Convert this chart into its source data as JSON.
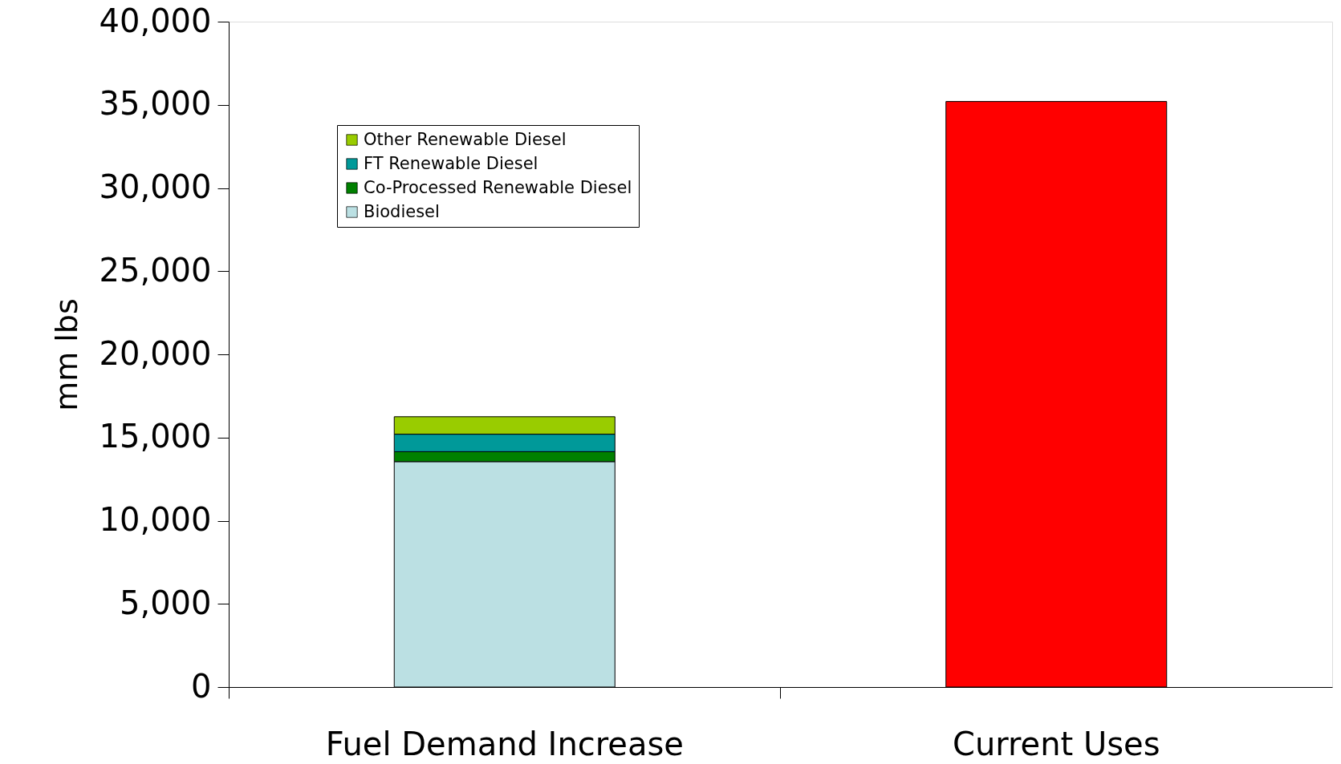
{
  "chart_data": {
    "type": "bar",
    "stacked": true,
    "ylabel": "mm lbs",
    "categories": [
      "Fuel Demand Increase",
      "Current Uses"
    ],
    "series": [
      {
        "name": "Biodiesel",
        "color": "#bbe0e3",
        "values": [
          13550,
          null
        ]
      },
      {
        "name": "Co-Processed Renewable Diesel",
        "color": "#008000",
        "values": [
          600,
          null
        ]
      },
      {
        "name": "FT Renewable Diesel",
        "color": "#009999",
        "values": [
          1050,
          null
        ]
      },
      {
        "name": "Other Renewable Diesel",
        "color": "#99cc00",
        "values": [
          1050,
          null
        ]
      },
      {
        "color": "#ff0000",
        "values": [
          null,
          35200
        ]
      }
    ],
    "ylim": [
      0,
      40000
    ],
    "yticks": [
      0,
      {
        "value": 5000,
        "label": "5,000"
      },
      {
        "value": 10000,
        "label": "10,000"
      },
      {
        "value": 15000,
        "label": "15,000"
      },
      {
        "value": 20000,
        "label": "20,000"
      },
      {
        "value": 25000,
        "label": "25,000"
      },
      {
        "value": 30000,
        "label": "30,000"
      },
      {
        "value": 35000,
        "label": "35,000"
      },
      {
        "value": 40000,
        "label": "40,000"
      }
    ],
    "grid": false,
    "legend": "top left"
  }
}
